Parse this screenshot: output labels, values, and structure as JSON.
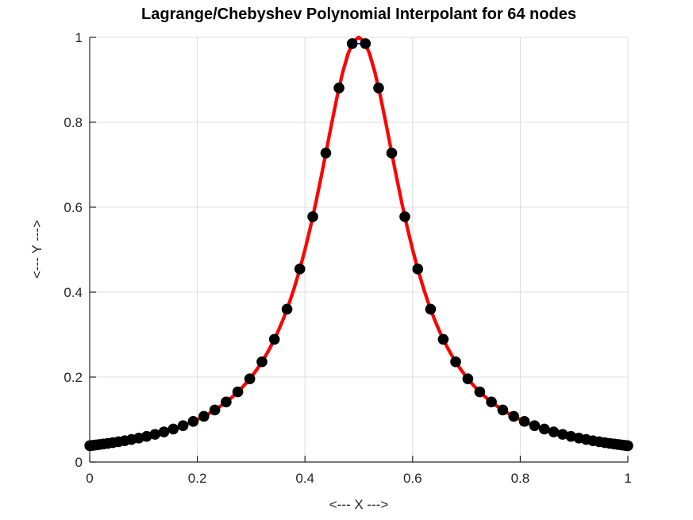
{
  "figure": {
    "background": "#ffffff",
    "title": "Lagrange/Chebyshev Polynomial Interpolant for 64 nodes"
  },
  "chart_data": {
    "type": "line",
    "title": "Lagrange/Chebyshev Polynomial Interpolant for 64 nodes",
    "xlabel": "<--- X --->",
    "ylabel": "<--- Y --->",
    "xlim": [
      0,
      1
    ],
    "ylim": [
      0,
      1
    ],
    "xticks": [
      0,
      0.2,
      0.4,
      0.6,
      0.8,
      1
    ],
    "xtick_labels": [
      "0",
      "0.2",
      "0.4",
      "0.6",
      "0.8",
      "1"
    ],
    "yticks": [
      0,
      0.2,
      0.4,
      0.6,
      0.8,
      1
    ],
    "ytick_labels": [
      "0",
      "0.2",
      "0.4",
      "0.6",
      "0.8",
      "1"
    ],
    "grid": true,
    "legend": null,
    "colors": {
      "interpolant_curve": "#ff0000",
      "node_polyline": "#0000ff",
      "node_marker": "#000000",
      "axis": "#262626",
      "grid": "#dcdcdc",
      "title": "#000000"
    },
    "nodes": {
      "description": "64 Chebyshev nodes (markers, also joined by thin blue polyline)",
      "x": [
        0.00015,
        0.00135,
        0.00376,
        0.00736,
        0.01215,
        0.01811,
        0.02524,
        0.0335,
        0.0429,
        0.05339,
        0.06496,
        0.07757,
        0.09121,
        0.10583,
        0.12139,
        0.13788,
        0.15523,
        0.17341,
        0.19238,
        0.2121,
        0.2325,
        0.25355,
        0.27519,
        0.29738,
        0.32005,
        0.34316,
        0.36664,
        0.39045,
        0.41452,
        0.43879,
        0.46322,
        0.48773,
        0.51227,
        0.53678,
        0.56121,
        0.58548,
        0.60955,
        0.63336,
        0.65684,
        0.67995,
        0.70262,
        0.72481,
        0.74645,
        0.7675,
        0.7879,
        0.80762,
        0.82659,
        0.84477,
        0.86212,
        0.87861,
        0.89417,
        0.90879,
        0.92243,
        0.93504,
        0.94661,
        0.95711,
        0.9665,
        0.97476,
        0.98189,
        0.98785,
        0.99264,
        0.99624,
        0.99865,
        0.99985
      ],
      "y": [
        0.0385,
        0.0387,
        0.039,
        0.0396,
        0.0403,
        0.0413,
        0.0425,
        0.0439,
        0.0457,
        0.0477,
        0.0502,
        0.0531,
        0.0565,
        0.0605,
        0.0652,
        0.0709,
        0.0776,
        0.0857,
        0.0956,
        0.1077,
        0.1226,
        0.1414,
        0.1652,
        0.1959,
        0.236,
        0.289,
        0.3599,
        0.4545,
        0.5778,
        0.7275,
        0.8808,
        0.9852,
        0.9852,
        0.8808,
        0.7275,
        0.5778,
        0.4545,
        0.3599,
        0.289,
        0.236,
        0.1959,
        0.1652,
        0.1414,
        0.1226,
        0.1077,
        0.0956,
        0.0857,
        0.0776,
        0.0709,
        0.0652,
        0.0605,
        0.0565,
        0.0531,
        0.0502,
        0.0477,
        0.0457,
        0.0439,
        0.0425,
        0.0413,
        0.0403,
        0.0396,
        0.039,
        0.0387,
        0.0385
      ]
    },
    "curve": {
      "description": "dense samples of interpolant / function 1/(1+100(x-0.5)^2)",
      "x": [
        0,
        0.01,
        0.02,
        0.03,
        0.04,
        0.05,
        0.06,
        0.07,
        0.08,
        0.09,
        0.1,
        0.11,
        0.12,
        0.13,
        0.14,
        0.15,
        0.16,
        0.17,
        0.18,
        0.19,
        0.2,
        0.21,
        0.22,
        0.23,
        0.24,
        0.25,
        0.26,
        0.27,
        0.28,
        0.29,
        0.3,
        0.31,
        0.32,
        0.33,
        0.34,
        0.35,
        0.36,
        0.37,
        0.38,
        0.39,
        0.4,
        0.41,
        0.42,
        0.43,
        0.44,
        0.45,
        0.46,
        0.47,
        0.48,
        0.49,
        0.5,
        0.51,
        0.52,
        0.53,
        0.54,
        0.55,
        0.56,
        0.57,
        0.58,
        0.59,
        0.6,
        0.61,
        0.62,
        0.63,
        0.64,
        0.65,
        0.66,
        0.67,
        0.68,
        0.69,
        0.7,
        0.71,
        0.72,
        0.73,
        0.74,
        0.75,
        0.76,
        0.77,
        0.78,
        0.79,
        0.8,
        0.81,
        0.82,
        0.83,
        0.84,
        0.85,
        0.86,
        0.87,
        0.88,
        0.89,
        0.9,
        0.91,
        0.92,
        0.93,
        0.94,
        0.95,
        0.96,
        0.97,
        0.98,
        0.99,
        1
      ],
      "y": [
        0.0385,
        0.04,
        0.0416,
        0.0433,
        0.0451,
        0.0471,
        0.0491,
        0.0513,
        0.0536,
        0.0561,
        0.0588,
        0.0617,
        0.0648,
        0.0681,
        0.0716,
        0.0755,
        0.0796,
        0.0841,
        0.089,
        0.0943,
        0.1,
        0.1063,
        0.1131,
        0.1206,
        0.1289,
        0.1379,
        0.1479,
        0.159,
        0.1712,
        0.1848,
        0.2,
        0.2169,
        0.2358,
        0.2571,
        0.2809,
        0.3077,
        0.3378,
        0.3717,
        0.4098,
        0.4525,
        0.5,
        0.5525,
        0.6098,
        0.6711,
        0.7353,
        0.8,
        0.8621,
        0.9174,
        0.9615,
        0.9901,
        1,
        0.9901,
        0.9615,
        0.9174,
        0.8621,
        0.8,
        0.7353,
        0.6711,
        0.6098,
        0.5525,
        0.5,
        0.4525,
        0.4098,
        0.3717,
        0.3378,
        0.3077,
        0.2809,
        0.2571,
        0.2358,
        0.2169,
        0.2,
        0.1848,
        0.1712,
        0.159,
        0.1479,
        0.1379,
        0.1289,
        0.1206,
        0.1131,
        0.1063,
        0.1,
        0.0943,
        0.089,
        0.0841,
        0.0796,
        0.0755,
        0.0716,
        0.0681,
        0.0648,
        0.0617,
        0.0588,
        0.0561,
        0.0536,
        0.0513,
        0.0491,
        0.0471,
        0.0451,
        0.0433,
        0.0416,
        0.04,
        0.0385
      ]
    },
    "series": [
      {
        "name": "node-polyline",
        "data": "nodes",
        "type": "line",
        "color": "#0000ff",
        "width": 1.6
      },
      {
        "name": "interpolant-curve",
        "data": "curve",
        "type": "line",
        "color": "#ff0000",
        "width": 4.3
      },
      {
        "name": "node-markers",
        "data": "nodes",
        "type": "scatter",
        "color": "#000000",
        "radius": 6.8
      }
    ]
  }
}
